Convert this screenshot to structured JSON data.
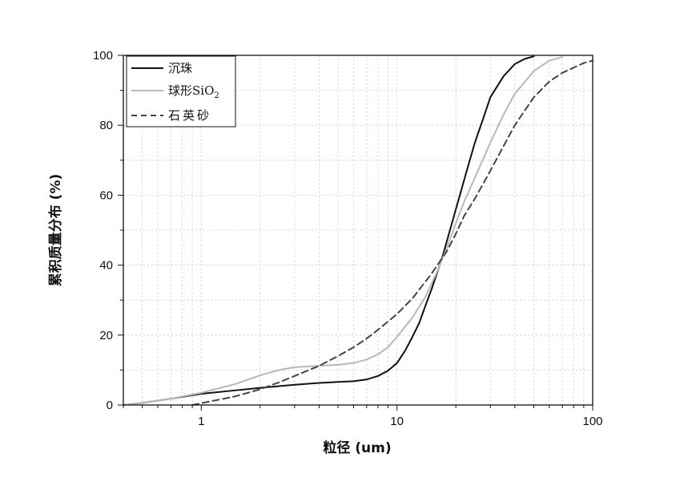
{
  "chart_data": {
    "type": "line",
    "xlabel": "粒径 (um)",
    "ylabel": "累积质量分布 (%)",
    "x_scale": "log",
    "xlim": [
      0.4,
      100
    ],
    "ylim": [
      0,
      100
    ],
    "xticks": [
      "1",
      "10",
      "100"
    ],
    "yticks": [
      "0",
      "20",
      "40",
      "60",
      "80",
      "100"
    ],
    "grid": "dotted",
    "legend_position": "top-left",
    "series": [
      {
        "name": "沉珠",
        "style": "solid",
        "color": "#111111",
        "x": [
          0.4,
          0.5,
          0.7,
          1,
          1.5,
          2,
          3,
          4,
          5,
          6,
          7,
          8,
          9,
          10,
          11,
          12,
          13,
          14,
          15,
          17,
          20,
          23,
          25,
          28,
          30,
          35,
          40,
          45,
          50
        ],
        "y": [
          0,
          0.6,
          1.8,
          3.2,
          4.2,
          4.9,
          5.8,
          6.3,
          6.6,
          6.8,
          7.3,
          8.3,
          9.8,
          12,
          15.5,
          19.5,
          23.5,
          28.5,
          33,
          42,
          56,
          68,
          75,
          83,
          88,
          94,
          97.5,
          99,
          99.7
        ]
      },
      {
        "name": "球形SiO2",
        "style": "solid",
        "color": "#b8b8b8",
        "x": [
          0.4,
          0.5,
          0.7,
          1,
          1.5,
          2,
          2.5,
          3,
          4,
          5,
          6,
          7,
          8,
          9,
          10,
          12,
          14,
          16,
          18,
          20,
          22,
          25,
          30,
          35,
          40,
          50,
          60,
          70
        ],
        "y": [
          0,
          0.6,
          1.8,
          3.5,
          6,
          8.5,
          10,
          10.8,
          11.2,
          11.5,
          12,
          13,
          14.5,
          16.5,
          19.5,
          25,
          31,
          38,
          45,
          52,
          58,
          65,
          75,
          83,
          89,
          95.5,
          98.5,
          99.5
        ]
      },
      {
        "name": "石英砂",
        "style": "dashed",
        "color": "#444444",
        "x": [
          0.9,
          1,
          1.5,
          2,
          2.5,
          3,
          4,
          5,
          6,
          7,
          8,
          10,
          12,
          15,
          18,
          20,
          22,
          25,
          30,
          35,
          40,
          50,
          60,
          70,
          80,
          90,
          100
        ],
        "y": [
          0,
          0.5,
          2.5,
          4.5,
          6.5,
          8.3,
          11.2,
          14,
          16.5,
          19,
          21.5,
          26,
          30.5,
          37.5,
          44,
          49,
          54,
          59,
          67,
          74,
          80,
          88,
          92.5,
          95,
          96.5,
          97.8,
          98.5
        ]
      }
    ]
  }
}
